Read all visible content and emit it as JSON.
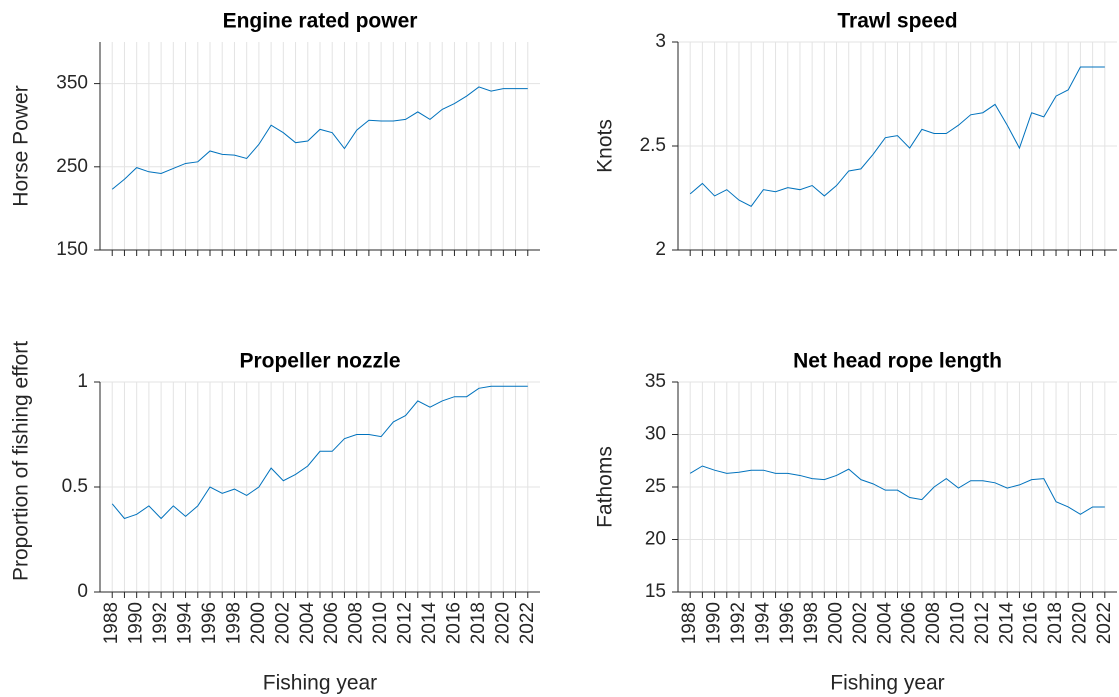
{
  "chart_data": [
    {
      "type": "line",
      "title": "Engine rated power",
      "ylabel": "Horse Power",
      "color": "#0072bd",
      "x": [
        1988,
        1989,
        1990,
        1991,
        1992,
        1993,
        1994,
        1995,
        1996,
        1997,
        1998,
        1999,
        2000,
        2001,
        2002,
        2003,
        2004,
        2005,
        2006,
        2007,
        2008,
        2009,
        2010,
        2011,
        2012,
        2013,
        2014,
        2015,
        2016,
        2017,
        2018,
        2019,
        2020,
        2021,
        2022
      ],
      "values": [
        223,
        235,
        249,
        244,
        242,
        248,
        254,
        256,
        269,
        265,
        264,
        260,
        277,
        300,
        291,
        279,
        281,
        295,
        291,
        272,
        294,
        306,
        305,
        305,
        307,
        316,
        307,
        319,
        326,
        335,
        346,
        341,
        344,
        344,
        344
      ],
      "xlim": [
        1987,
        2023
      ],
      "xticks": [
        1988,
        1990,
        1992,
        1994,
        1996,
        1998,
        2000,
        2002,
        2004,
        2006,
        2008,
        2010,
        2012,
        2014,
        2016,
        2018,
        2020,
        2022
      ],
      "xminor_ticks": [
        1989,
        1991,
        1993,
        1995,
        1997,
        1999,
        2001,
        2003,
        2005,
        2007,
        2009,
        2011,
        2013,
        2015,
        2017,
        2019,
        2021
      ],
      "show_xtick_labels": false,
      "ylim": [
        150,
        400
      ],
      "yticks": [
        150,
        250,
        350
      ],
      "grid": true
    },
    {
      "type": "line",
      "title": "Trawl speed",
      "ylabel": "Knots",
      "color": "#0072bd",
      "x": [
        1988,
        1989,
        1990,
        1991,
        1992,
        1993,
        1994,
        1995,
        1996,
        1997,
        1998,
        1999,
        2000,
        2001,
        2002,
        2003,
        2004,
        2005,
        2006,
        2007,
        2008,
        2009,
        2010,
        2011,
        2012,
        2013,
        2014,
        2015,
        2016,
        2017,
        2018,
        2019,
        2020,
        2021,
        2022
      ],
      "values": [
        2.27,
        2.32,
        2.26,
        2.29,
        2.24,
        2.21,
        2.29,
        2.28,
        2.3,
        2.29,
        2.31,
        2.26,
        2.31,
        2.38,
        2.39,
        2.46,
        2.54,
        2.55,
        2.49,
        2.58,
        2.56,
        2.56,
        2.6,
        2.65,
        2.66,
        2.7,
        2.6,
        2.49,
        2.66,
        2.64,
        2.74,
        2.77,
        2.88,
        2.88,
        2.88
      ],
      "xlim": [
        1987,
        2023
      ],
      "xticks": [
        1988,
        1990,
        1992,
        1994,
        1996,
        1998,
        2000,
        2002,
        2004,
        2006,
        2008,
        2010,
        2012,
        2014,
        2016,
        2018,
        2020,
        2022
      ],
      "xminor_ticks": [
        1989,
        1991,
        1993,
        1995,
        1997,
        1999,
        2001,
        2003,
        2005,
        2007,
        2009,
        2011,
        2013,
        2015,
        2017,
        2019,
        2021
      ],
      "show_xtick_labels": false,
      "ylim": [
        2,
        3
      ],
      "yticks": [
        2,
        2.5,
        3
      ],
      "grid": true
    },
    {
      "type": "line",
      "title": "Propeller nozzle",
      "ylabel": "Proportion of fishing effort",
      "xlabel": "Fishing year",
      "color": "#0072bd",
      "x": [
        1988,
        1989,
        1990,
        1991,
        1992,
        1993,
        1994,
        1995,
        1996,
        1997,
        1998,
        1999,
        2000,
        2001,
        2002,
        2003,
        2004,
        2005,
        2006,
        2007,
        2008,
        2009,
        2010,
        2011,
        2012,
        2013,
        2014,
        2015,
        2016,
        2017,
        2018,
        2019,
        2020,
        2021,
        2022
      ],
      "values": [
        0.42,
        0.35,
        0.37,
        0.41,
        0.35,
        0.41,
        0.36,
        0.41,
        0.5,
        0.47,
        0.49,
        0.46,
        0.5,
        0.59,
        0.53,
        0.56,
        0.6,
        0.67,
        0.67,
        0.73,
        0.75,
        0.75,
        0.74,
        0.81,
        0.84,
        0.91,
        0.88,
        0.91,
        0.93,
        0.93,
        0.97,
        0.98,
        0.98,
        0.98,
        0.98
      ],
      "xlim": [
        1987,
        2023
      ],
      "xticks": [
        1988,
        1990,
        1992,
        1994,
        1996,
        1998,
        2000,
        2002,
        2004,
        2006,
        2008,
        2010,
        2012,
        2014,
        2016,
        2018,
        2020,
        2022
      ],
      "xminor_ticks": [
        1989,
        1991,
        1993,
        1995,
        1997,
        1999,
        2001,
        2003,
        2005,
        2007,
        2009,
        2011,
        2013,
        2015,
        2017,
        2019,
        2021
      ],
      "show_xtick_labels": true,
      "ylim": [
        0,
        1
      ],
      "yticks": [
        0,
        0.5,
        1
      ],
      "grid": true
    },
    {
      "type": "line",
      "title": "Net head rope length",
      "ylabel": "Fathoms",
      "xlabel": "Fishing year",
      "color": "#0072bd",
      "x": [
        1988,
        1989,
        1990,
        1991,
        1992,
        1993,
        1994,
        1995,
        1996,
        1997,
        1998,
        1999,
        2000,
        2001,
        2002,
        2003,
        2004,
        2005,
        2006,
        2007,
        2008,
        2009,
        2010,
        2011,
        2012,
        2013,
        2014,
        2015,
        2016,
        2017,
        2018,
        2019,
        2020,
        2021,
        2022
      ],
      "values": [
        26.3,
        27.0,
        26.6,
        26.3,
        26.4,
        26.6,
        26.6,
        26.3,
        26.3,
        26.1,
        25.8,
        25.7,
        26.1,
        26.7,
        25.7,
        25.3,
        24.7,
        24.7,
        24.0,
        23.8,
        25.0,
        25.8,
        24.9,
        25.6,
        25.6,
        25.4,
        24.9,
        25.2,
        25.7,
        25.8,
        23.6,
        23.1,
        22.4,
        23.1,
        23.1
      ],
      "xlim": [
        1987,
        2023
      ],
      "xticks": [
        1988,
        1990,
        1992,
        1994,
        1996,
        1998,
        2000,
        2002,
        2004,
        2006,
        2008,
        2010,
        2012,
        2014,
        2016,
        2018,
        2020,
        2022
      ],
      "xminor_ticks": [
        1989,
        1991,
        1993,
        1995,
        1997,
        1999,
        2001,
        2003,
        2005,
        2007,
        2009,
        2011,
        2013,
        2015,
        2017,
        2019,
        2021
      ],
      "show_xtick_labels": true,
      "ylim": [
        15,
        35
      ],
      "yticks": [
        15,
        20,
        25,
        30,
        35
      ],
      "grid": true
    }
  ]
}
